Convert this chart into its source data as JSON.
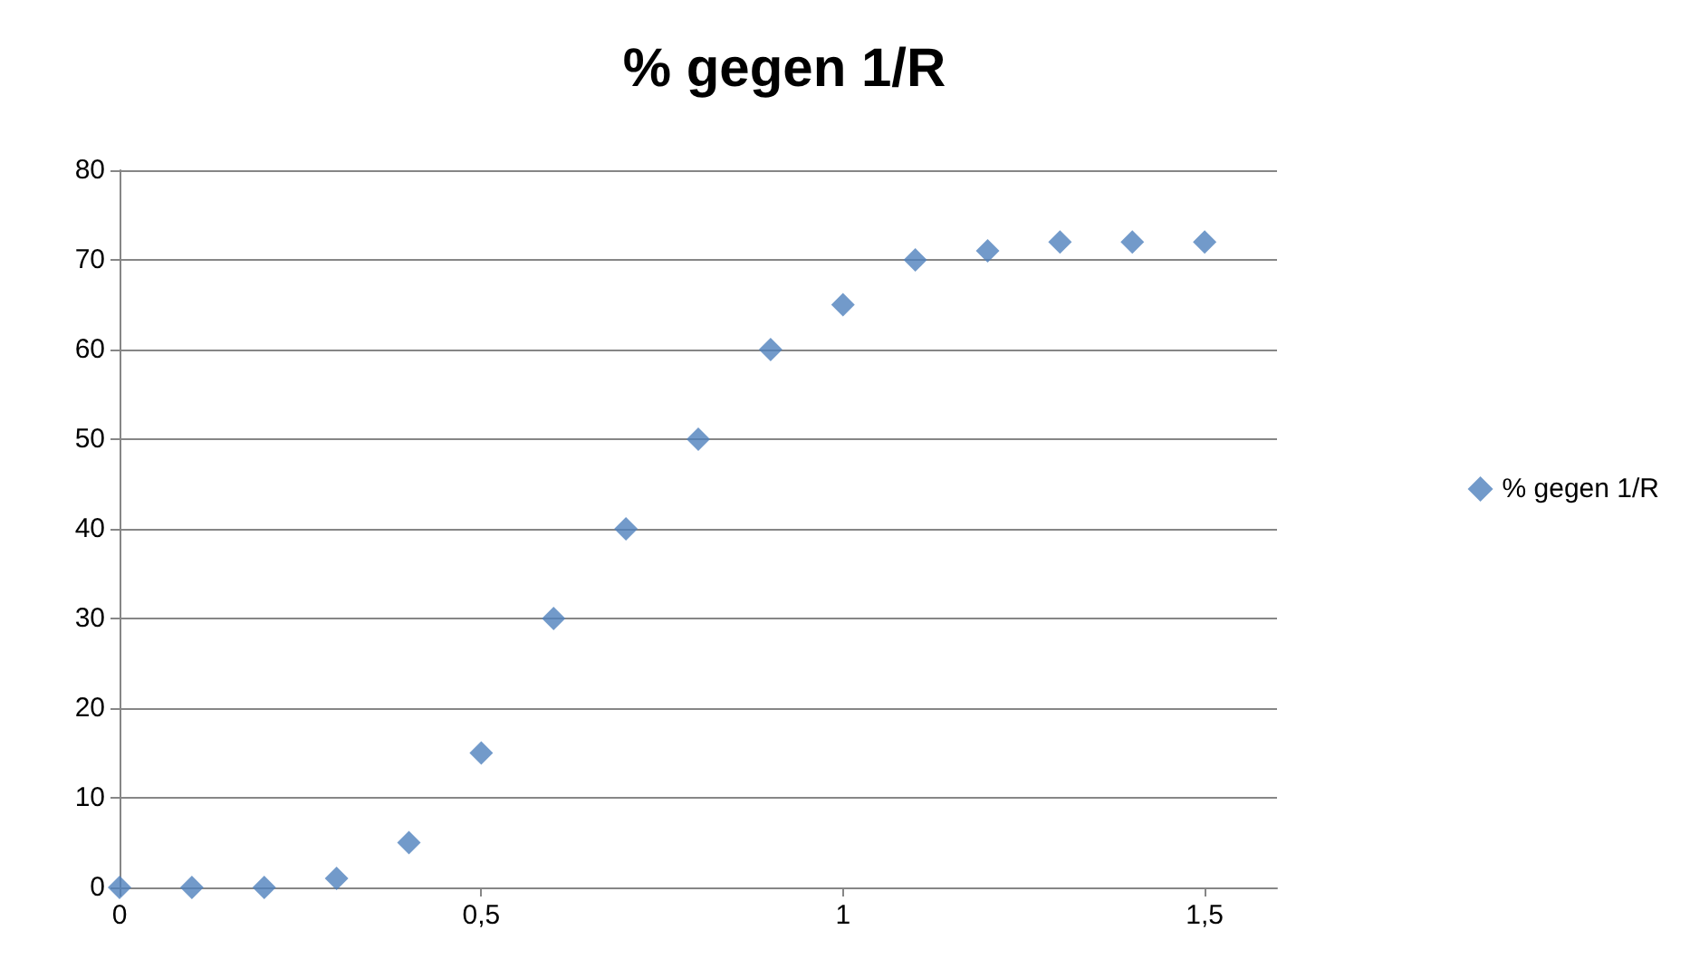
{
  "chart_data": {
    "type": "scatter",
    "title": "% gegen 1/R",
    "x": [
      0,
      0.1,
      0.2,
      0.3,
      0.4,
      0.5,
      0.6,
      0.7,
      0.8,
      0.9,
      1,
      1.1,
      1.2,
      1.3,
      1.4,
      1.5
    ],
    "series": [
      {
        "name": "% gegen 1/R",
        "color": "#4f81bd",
        "values": [
          0,
          0,
          0,
          1,
          5,
          15,
          30,
          40,
          50,
          60,
          65,
          70,
          71,
          72,
          72,
          72
        ]
      }
    ],
    "xlim": [
      0,
      1.6
    ],
    "xticks": [
      0,
      {
        "value": 0.5,
        "label": "0,5"
      },
      1,
      {
        "value": 1.5,
        "label": "1,5"
      }
    ],
    "ylim": [
      0,
      80
    ],
    "yticks": [
      0,
      10,
      20,
      30,
      40,
      50,
      60,
      70,
      80
    ],
    "grid": "y",
    "legend": "right",
    "marker": "diamond"
  }
}
